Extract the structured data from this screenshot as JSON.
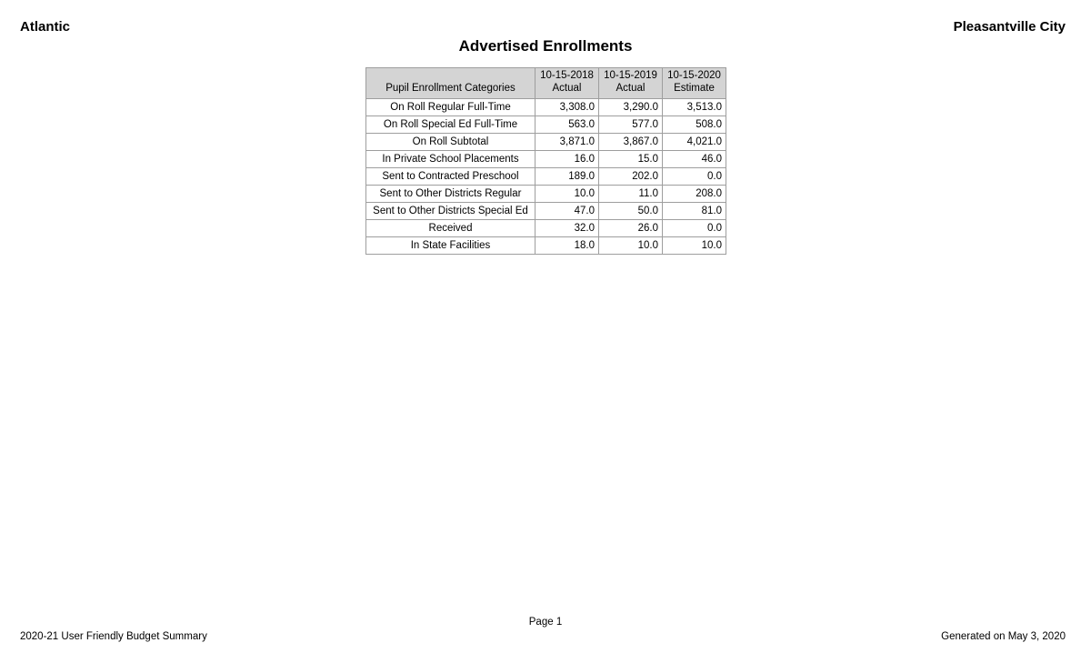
{
  "header": {
    "county": "Atlantic",
    "district": "Pleasantville City"
  },
  "title": "Advertised Enrollments",
  "table": {
    "columns": [
      "Pupil Enrollment Categories",
      "10-15-2018\nActual",
      "10-15-2019\nActual",
      "10-15-2020\nEstimate"
    ],
    "rows": [
      {
        "category": "On Roll Regular Full-Time",
        "values": [
          "3,308.0",
          "3,290.0",
          "3,513.0"
        ]
      },
      {
        "category": "On Roll Special Ed Full-Time",
        "values": [
          "563.0",
          "577.0",
          "508.0"
        ]
      },
      {
        "category": "On Roll Subtotal",
        "values": [
          "3,871.0",
          "3,867.0",
          "4,021.0"
        ]
      },
      {
        "category": "In Private School Placements",
        "values": [
          "16.0",
          "15.0",
          "46.0"
        ]
      },
      {
        "category": "Sent to Contracted Preschool",
        "values": [
          "189.0",
          "202.0",
          "0.0"
        ]
      },
      {
        "category": "Sent to Other Districts Regular",
        "values": [
          "10.0",
          "11.0",
          "208.0"
        ]
      },
      {
        "category": "Sent to Other Districts Special Ed",
        "values": [
          "47.0",
          "50.0",
          "81.0"
        ]
      },
      {
        "category": "Received",
        "values": [
          "32.0",
          "26.0",
          "0.0"
        ]
      },
      {
        "category": "In State Facilities",
        "values": [
          "18.0",
          "10.0",
          "10.0"
        ]
      }
    ]
  },
  "footer": {
    "page_number": "Page 1",
    "left": "2020-21 User Friendly Budget Summary",
    "right": "Generated on May 3, 2020"
  },
  "colors": {
    "header_row_bg": "#d4d4d4",
    "border": "#9e9e9e",
    "text": "#000000",
    "page_bg": "#ffffff"
  }
}
